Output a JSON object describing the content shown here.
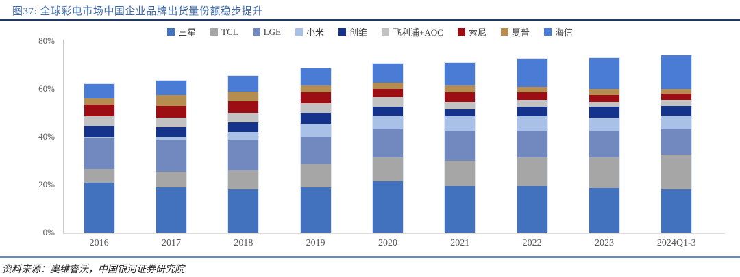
{
  "title": "图37: 全球彩电市场中国企业品牌出货量份额稳步提升",
  "source": "资料来源：奥维睿沃，中国银河证券研究院",
  "colors": {
    "title_text": "#3C69AE",
    "top_rule": "#1F3864",
    "bottom_rule": "#6E87BE",
    "axis_text": "#595959",
    "axis_line": "#C9C9C9"
  },
  "chart_data": {
    "type": "bar",
    "stacked": true,
    "title": "全球彩电市场中国企业品牌出货量份额",
    "xlabel": "",
    "ylabel": "",
    "ylim": [
      0,
      80
    ],
    "yticks": [
      "0%",
      "20%",
      "40%",
      "60%",
      "80%"
    ],
    "grid": false,
    "legend_position": "top",
    "categories": [
      "2016",
      "2017",
      "2018",
      "2019",
      "2020",
      "2021",
      "2022",
      "2023",
      "2024Q1-3"
    ],
    "series": [
      {
        "name": "三星",
        "key": "samsung",
        "color": "#4271BE",
        "values": [
          21,
          19,
          18,
          19,
          21.5,
          19.5,
          19.5,
          18.5,
          18
        ]
      },
      {
        "name": "TCL",
        "key": "tcl",
        "color": "#A6A6A6",
        "values": [
          5.5,
          6.5,
          8,
          9.5,
          10,
          10.5,
          12,
          13,
          14.5
        ]
      },
      {
        "name": "LGE",
        "key": "lge",
        "color": "#7289BF",
        "values": [
          13,
          13,
          12.5,
          11.5,
          12,
          12.5,
          11,
          11,
          11
        ]
      },
      {
        "name": "小米",
        "key": "xiaomi",
        "color": "#A9C1E6",
        "values": [
          0.5,
          1.5,
          3.5,
          5.5,
          5.5,
          6,
          6,
          5.5,
          5.5
        ]
      },
      {
        "name": "创维",
        "key": "skyworth",
        "color": "#16338C",
        "values": [
          4.5,
          4,
          4,
          4.5,
          3.5,
          3,
          4,
          4.5,
          4
        ]
      },
      {
        "name": "飞利浦+AOC",
        "key": "philips-aoc",
        "color": "#C2C2C2",
        "values": [
          4,
          4,
          4,
          4,
          4,
          3,
          3,
          2,
          2.5
        ]
      },
      {
        "name": "索尼",
        "key": "sony",
        "color": "#9C0E13",
        "values": [
          5,
          5,
          5,
          4.5,
          3.5,
          4,
          3,
          3,
          2.5
        ]
      },
      {
        "name": "夏普",
        "key": "sharp",
        "color": "#B68D51",
        "values": [
          2.5,
          4.5,
          4,
          3,
          2.5,
          3,
          2.5,
          2.5,
          2
        ]
      },
      {
        "name": "海信",
        "key": "hisense",
        "color": "#4A7CD5",
        "values": [
          6,
          6,
          6.5,
          7,
          8,
          9.5,
          11.5,
          13,
          14
        ]
      }
    ]
  }
}
